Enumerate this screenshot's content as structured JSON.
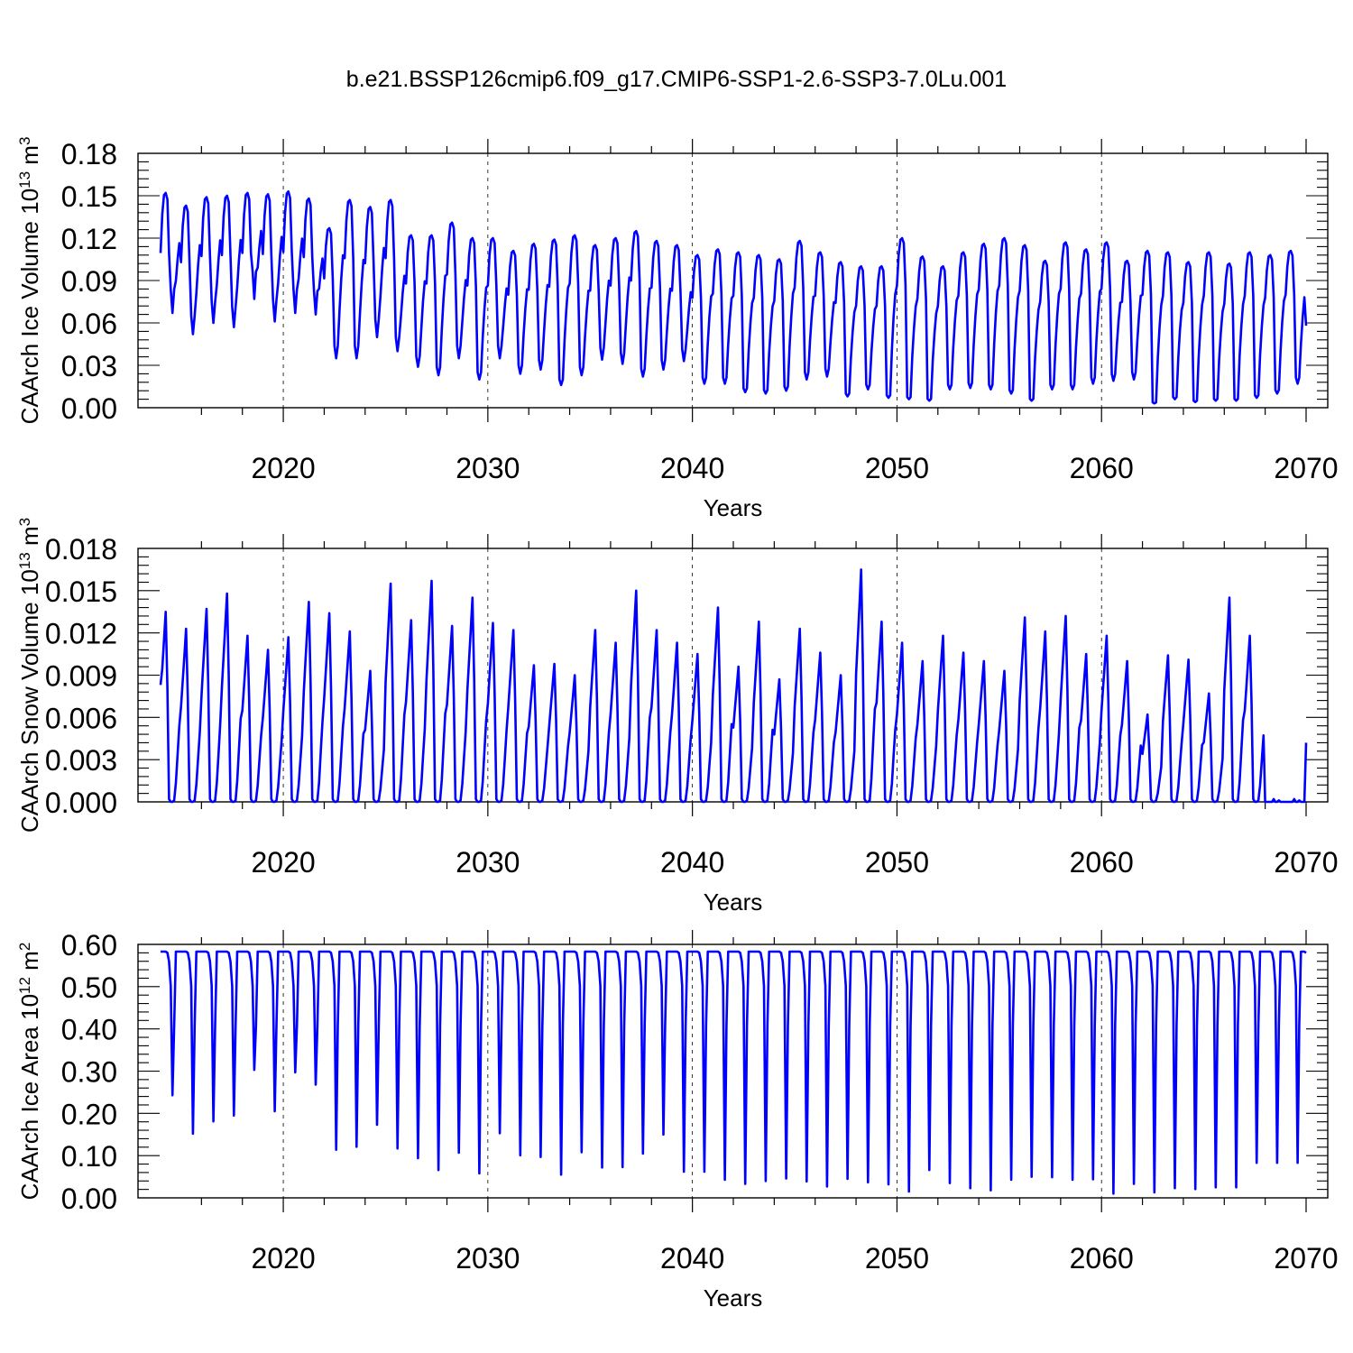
{
  "title": "b.e21.BSSP126cmip6.f09_g17.CMIP6-SSP1-2.6-SSP3-7.0Lu.001",
  "chart_data": [
    {
      "type": "line",
      "ylabel": {
        "base": "CAArch Ice Volume 10",
        "exp": "13",
        "unit": " m",
        "unit_exp": "3"
      },
      "xlabel": "Years",
      "xlim": [
        2014,
        2070
      ],
      "ylim": [
        0,
        0.18
      ],
      "xticks": [
        2020,
        2030,
        2040,
        2050,
        2060,
        2070
      ],
      "yticks": [
        "0.00",
        "0.03",
        "0.06",
        "0.09",
        "0.12",
        "0.15",
        "0.18"
      ],
      "grid": "dashed vertical lines at labelled years",
      "series": [
        {
          "color": "#0000ff",
          "annual_max": [
            0.152,
            0.143,
            0.149,
            0.15,
            0.152,
            0.151,
            0.153,
            0.148,
            0.127,
            0.147,
            0.142,
            0.147,
            0.122,
            0.122,
            0.131,
            0.12,
            0.12,
            0.111,
            0.116,
            0.119,
            0.122,
            0.115,
            0.12,
            0.125,
            0.118,
            0.115,
            0.108,
            0.112,
            0.11,
            0.108,
            0.105,
            0.118,
            0.11,
            0.103,
            0.1,
            0.1,
            0.12,
            0.107,
            0.1,
            0.11,
            0.116,
            0.12,
            0.115,
            0.104,
            0.117,
            0.112,
            0.117,
            0.104,
            0.111,
            0.11,
            0.103,
            0.11,
            0.102,
            0.11,
            0.108,
            0.111
          ],
          "annual_min": [
            0.067,
            0.052,
            0.06,
            0.057,
            0.077,
            0.061,
            0.067,
            0.066,
            0.035,
            0.035,
            0.05,
            0.04,
            0.029,
            0.023,
            0.035,
            0.02,
            0.035,
            0.024,
            0.027,
            0.016,
            0.023,
            0.034,
            0.031,
            0.022,
            0.027,
            0.033,
            0.017,
            0.017,
            0.011,
            0.01,
            0.012,
            0.02,
            0.022,
            0.008,
            0.013,
            0.007,
            0.006,
            0.005,
            0.013,
            0.014,
            0.013,
            0.01,
            0.005,
            0.013,
            0.013,
            0.017,
            0.019,
            0.02,
            0.003,
            0.006,
            0.004,
            0.005,
            0.005,
            0.007,
            0.01,
            0.017
          ],
          "end_value": 0.058
        }
      ]
    },
    {
      "type": "line",
      "ylabel": {
        "base": "CAArch Snow Volume 10",
        "exp": "13",
        "unit": " m",
        "unit_exp": "3"
      },
      "xlabel": "Years",
      "xlim": [
        2014,
        2070
      ],
      "ylim": [
        0,
        0.018
      ],
      "xticks": [
        2020,
        2030,
        2040,
        2050,
        2060,
        2070
      ],
      "yticks": [
        "0.000",
        "0.003",
        "0.006",
        "0.009",
        "0.012",
        "0.015",
        "0.018"
      ],
      "grid": "dashed vertical lines at labelled years",
      "series": [
        {
          "color": "#0000ff",
          "annual_max": [
            0.0135,
            0.0123,
            0.0137,
            0.0148,
            0.0118,
            0.0108,
            0.0117,
            0.0142,
            0.0134,
            0.0121,
            0.0093,
            0.0155,
            0.0129,
            0.0157,
            0.0125,
            0.0145,
            0.0127,
            0.0122,
            0.0097,
            0.0098,
            0.009,
            0.0122,
            0.0113,
            0.015,
            0.0122,
            0.0113,
            0.0105,
            0.0138,
            0.0096,
            0.0128,
            0.0087,
            0.0123,
            0.0106,
            0.009,
            0.0165,
            0.0128,
            0.0113,
            0.01,
            0.0118,
            0.0106,
            0.01,
            0.0093,
            0.0131,
            0.0121,
            0.0132,
            0.0105,
            0.0118,
            0.01,
            0.0062,
            0.0104,
            0.0101,
            0.0077,
            0.0145,
            0.0118,
            0.0,
            0.0
          ],
          "annual_min": [
            0.0
          ],
          "start_value": 0.0083,
          "end_value": 0.0042
        }
      ]
    },
    {
      "type": "line",
      "ylabel": {
        "base": "CAArch Ice Area 10",
        "exp": "12",
        "unit": " m",
        "unit_exp": "2"
      },
      "xlabel": "Years",
      "xlim": [
        2014,
        2070
      ],
      "ylim": [
        0,
        0.6
      ],
      "xticks": [
        2020,
        2030,
        2040,
        2050,
        2060,
        2070
      ],
      "yticks": [
        "0.00",
        "0.10",
        "0.20",
        "0.30",
        "0.40",
        "0.50",
        "0.60"
      ],
      "grid": "dashed vertical lines at labelled years",
      "series": [
        {
          "color": "#0000ff",
          "annual_max": [
            0.583
          ],
          "annual_min": [
            0.243,
            0.152,
            0.181,
            0.195,
            0.303,
            0.205,
            0.297,
            0.268,
            0.114,
            0.121,
            0.173,
            0.117,
            0.094,
            0.066,
            0.107,
            0.058,
            0.153,
            0.101,
            0.097,
            0.055,
            0.108,
            0.072,
            0.073,
            0.105,
            0.15,
            0.062,
            0.062,
            0.043,
            0.033,
            0.04,
            0.046,
            0.039,
            0.027,
            0.045,
            0.037,
            0.032,
            0.015,
            0.066,
            0.035,
            0.023,
            0.018,
            0.043,
            0.05,
            0.049,
            0.043,
            0.044,
            0.01,
            0.033,
            0.013,
            0.023,
            0.021,
            0.025,
            0.025,
            0.083,
            0.083,
            0.083
          ],
          "end_value": 0.58
        }
      ]
    }
  ]
}
